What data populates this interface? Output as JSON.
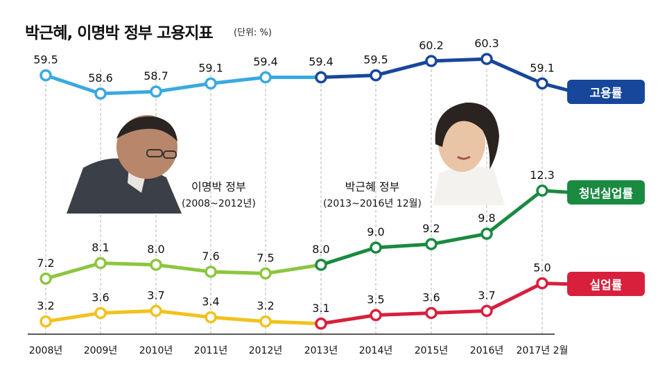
{
  "title": "박근혜, 이명박 정부 고용지표",
  "unit": "(단위: %)",
  "governments": [
    {
      "name": "이명박 정부",
      "years": "(2008~2012년)"
    },
    {
      "name": "박근혜 정부",
      "years": "(2013~2016년 12월)"
    }
  ],
  "chart_data": {
    "type": "line",
    "x": [
      "2008년",
      "2009년",
      "2010년",
      "2011년",
      "2012년",
      "2013년",
      "2014년",
      "2015년",
      "2016년",
      "2017년 2월"
    ],
    "series": [
      {
        "name": "고용률",
        "values": [
          59.5,
          58.6,
          58.7,
          59.1,
          59.4,
          59.4,
          59.5,
          60.2,
          60.3,
          59.1
        ],
        "color_early": "#3aa9e1",
        "color_late": "#17479b"
      },
      {
        "name": "청년실업률",
        "values": [
          7.2,
          8.1,
          8.0,
          7.6,
          7.5,
          8.0,
          9.0,
          9.2,
          9.8,
          12.3
        ],
        "color_early": "#8cc63f",
        "color_late": "#1a8a41"
      },
      {
        "name": "실업률",
        "values": [
          3.2,
          3.6,
          3.7,
          3.4,
          3.2,
          3.1,
          3.5,
          3.6,
          3.7,
          5.0
        ],
        "color_early": "#f2c21b",
        "color_late": "#d81f3c"
      }
    ],
    "grid": "vertical dashed lines at each year",
    "legend": "right"
  }
}
